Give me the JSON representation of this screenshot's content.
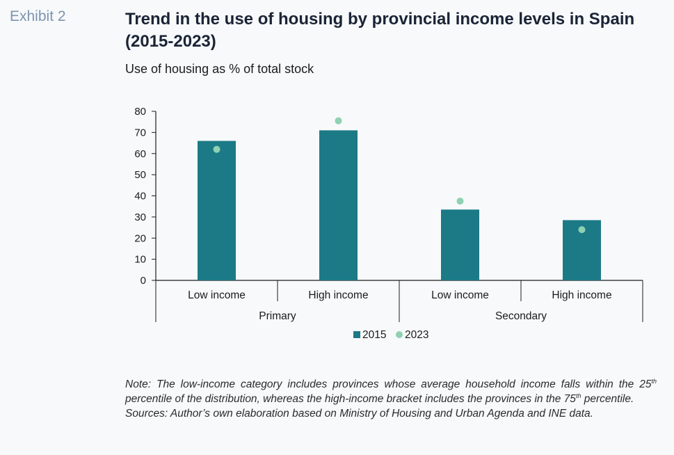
{
  "exhibit": "Exhibit 2",
  "title": "Trend in the use of housing by provincial income levels in Spain (2015-2023)",
  "subtitle": "Use of housing as % of total stock",
  "chart_data": {
    "type": "bar",
    "categories": [
      "Low income",
      "High income",
      "Low income",
      "High income"
    ],
    "groups": [
      {
        "label": "Primary",
        "categories": [
          "Low income",
          "High income"
        ]
      },
      {
        "label": "Secondary",
        "categories": [
          "Low income",
          "High income"
        ]
      }
    ],
    "series": [
      {
        "name": "2015",
        "kind": "bar",
        "color": "#1b7a86",
        "values": [
          66,
          71,
          33.5,
          28.5
        ]
      },
      {
        "name": "2023",
        "kind": "point",
        "color": "#8fd1b2",
        "values": [
          62,
          75.5,
          37.5,
          24
        ]
      }
    ],
    "ylim": [
      0,
      80
    ],
    "yticks": [
      "0",
      "10",
      "20",
      "30",
      "40",
      "50",
      "60",
      "70",
      "80"
    ],
    "grid": false,
    "legend": "bottom"
  },
  "notes": {
    "note_a": "Note: The low-income category includes provinces whose average household income falls within the 25",
    "note_sup1": "th",
    "note_b": " percentile of the distribution, whereas the high-income bracket includes the provinces in the 75",
    "note_sup2": "th",
    "note_c": " percentile.",
    "sources": "Sources: Author’s own elaboration based on Ministry of Housing and Urban Agenda and INE data."
  }
}
